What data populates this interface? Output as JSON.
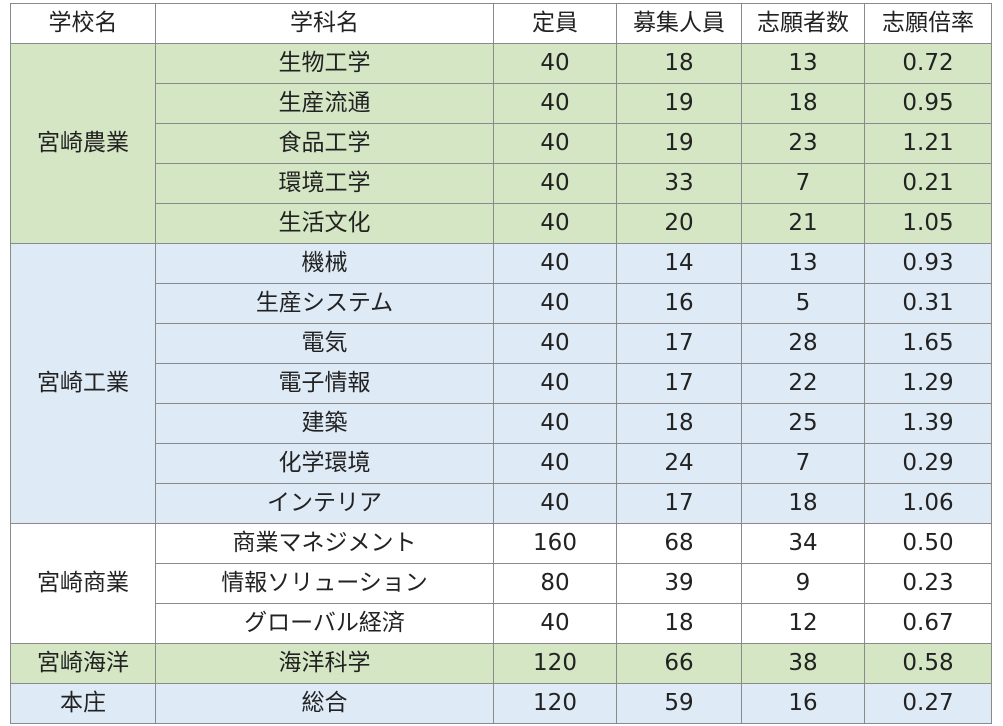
{
  "headers": [
    "学校名",
    "学科名",
    "定員",
    "募集人員",
    "志願者数",
    "志願倍率"
  ],
  "groups": [
    {
      "school": "宮崎農業",
      "color": "#d4e6c4",
      "rows": [
        {
          "dept": "生物工学",
          "capacity": "40",
          "recruit": "18",
          "applicants": "13",
          "ratio": "0.72"
        },
        {
          "dept": "生産流通",
          "capacity": "40",
          "recruit": "19",
          "applicants": "18",
          "ratio": "0.95"
        },
        {
          "dept": "食品工学",
          "capacity": "40",
          "recruit": "19",
          "applicants": "23",
          "ratio": "1.21"
        },
        {
          "dept": "環境工学",
          "capacity": "40",
          "recruit": "33",
          "applicants": "7",
          "ratio": "0.21"
        },
        {
          "dept": "生活文化",
          "capacity": "40",
          "recruit": "20",
          "applicants": "21",
          "ratio": "1.05"
        }
      ]
    },
    {
      "school": "宮崎工業",
      "color": "#deeaf6",
      "rows": [
        {
          "dept": "機械",
          "capacity": "40",
          "recruit": "14",
          "applicants": "13",
          "ratio": "0.93"
        },
        {
          "dept": "生産システム",
          "capacity": "40",
          "recruit": "16",
          "applicants": "5",
          "ratio": "0.31"
        },
        {
          "dept": "電気",
          "capacity": "40",
          "recruit": "17",
          "applicants": "28",
          "ratio": "1.65"
        },
        {
          "dept": "電子情報",
          "capacity": "40",
          "recruit": "17",
          "applicants": "22",
          "ratio": "1.29"
        },
        {
          "dept": "建築",
          "capacity": "40",
          "recruit": "18",
          "applicants": "25",
          "ratio": "1.39"
        },
        {
          "dept": "化学環境",
          "capacity": "40",
          "recruit": "24",
          "applicants": "7",
          "ratio": "0.29"
        },
        {
          "dept": "インテリア",
          "capacity": "40",
          "recruit": "17",
          "applicants": "18",
          "ratio": "1.06"
        }
      ]
    },
    {
      "school": "宮崎商業",
      "color": "#ffffff",
      "rows": [
        {
          "dept": "商業マネジメント",
          "capacity": "160",
          "recruit": "68",
          "applicants": "34",
          "ratio": "0.50"
        },
        {
          "dept": "情報ソリューション",
          "capacity": "80",
          "recruit": "39",
          "applicants": "9",
          "ratio": "0.23"
        },
        {
          "dept": "グローバル経済",
          "capacity": "40",
          "recruit": "18",
          "applicants": "12",
          "ratio": "0.67"
        }
      ]
    },
    {
      "school": "宮崎海洋",
      "color": "#d4e6c4",
      "rows": [
        {
          "dept": "海洋科学",
          "capacity": "120",
          "recruit": "66",
          "applicants": "38",
          "ratio": "0.58"
        }
      ]
    },
    {
      "school": "本庄",
      "color": "#deeaf6",
      "rows": [
        {
          "dept": "総合",
          "capacity": "120",
          "recruit": "59",
          "applicants": "16",
          "ratio": "0.27"
        }
      ]
    }
  ]
}
